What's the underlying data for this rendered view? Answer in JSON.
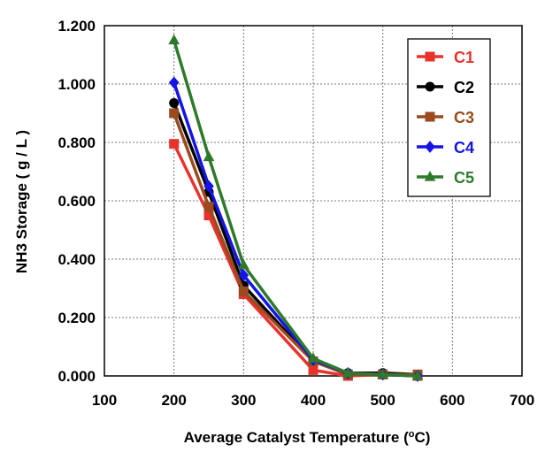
{
  "chart_data": {
    "type": "line",
    "title": "",
    "xlabel_main": "Average Catalyst Temperature (",
    "xlabel_sup": "o",
    "xlabel_tail": "C)",
    "ylabel": "NH3  Storage ( g / L )",
    "xlim": [
      100,
      700
    ],
    "ylim": [
      0,
      1.2
    ],
    "x_ticks": [
      "100",
      "200",
      "300",
      "400",
      "500",
      "600",
      "700"
    ],
    "y_ticks": [
      "0.000",
      "0.200",
      "0.400",
      "0.600",
      "0.800",
      "1.000",
      "1.200"
    ],
    "grid": true,
    "legend_position": "top-right",
    "series": [
      {
        "name": "C1",
        "color": "#e8322c",
        "marker": "square",
        "x": [
          200,
          250,
          300,
          400,
          450,
          500,
          550
        ],
        "y": [
          0.795,
          0.55,
          0.28,
          0.02,
          0.0,
          0.005,
          0.0
        ]
      },
      {
        "name": "C2",
        "color": "#000000",
        "marker": "circle",
        "x": [
          200,
          250,
          300,
          400,
          450,
          500,
          550
        ],
        "y": [
          0.935,
          0.63,
          0.31,
          0.05,
          0.01,
          0.01,
          0.005
        ]
      },
      {
        "name": "C3",
        "color": "#9a4a1e",
        "marker": "square",
        "x": [
          200,
          250,
          300,
          400,
          450,
          500,
          550
        ],
        "y": [
          0.9,
          0.58,
          0.29,
          0.05,
          0.005,
          0.005,
          0.005
        ]
      },
      {
        "name": "C4",
        "color": "#1414e6",
        "marker": "diamond",
        "x": [
          200,
          250,
          300,
          400,
          450,
          500,
          550
        ],
        "y": [
          1.005,
          0.65,
          0.345,
          0.055,
          0.01,
          0.005,
          0.0
        ]
      },
      {
        "name": "C5",
        "color": "#2e7a2a",
        "marker": "triangle",
        "x": [
          200,
          250,
          300,
          400,
          450,
          500,
          550
        ],
        "y": [
          1.15,
          0.75,
          0.38,
          0.06,
          0.01,
          0.005,
          0.0
        ]
      }
    ]
  }
}
